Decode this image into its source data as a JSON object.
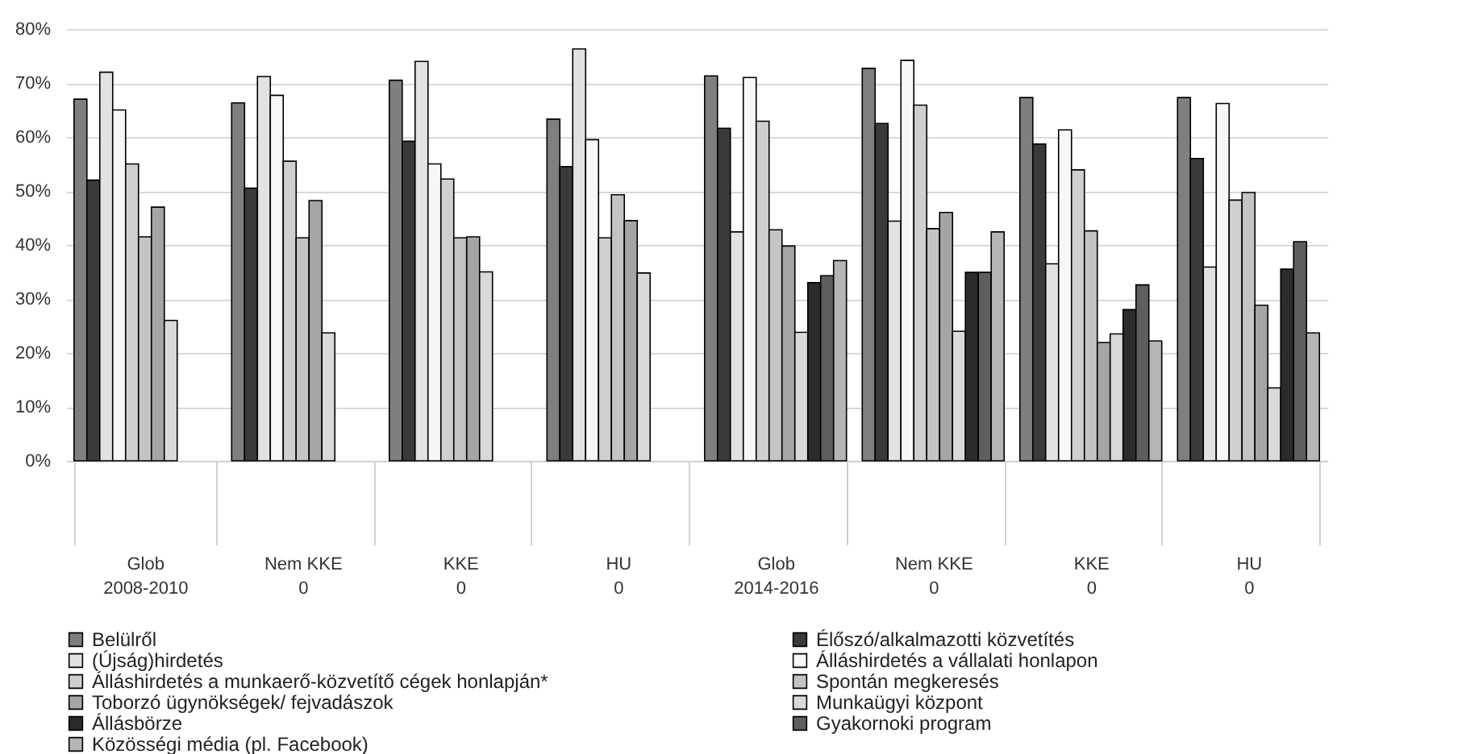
{
  "chart_data": {
    "type": "bar",
    "categories": [
      "Glob",
      "Nem KKE",
      "KKE",
      "HU",
      "Glob",
      "Nem KKE",
      "KKE",
      "HU"
    ],
    "annotations": [
      "2008-2010",
      "0",
      "0",
      "0",
      "2014-2016",
      "0",
      "0",
      "0"
    ],
    "ylim": [
      0,
      80
    ],
    "yticks": [
      {
        "value": 0,
        "label": "0%"
      },
      {
        "value": 10,
        "label": "10%"
      },
      {
        "value": 20,
        "label": "20%"
      },
      {
        "value": 30,
        "label": "30%"
      },
      {
        "value": 40,
        "label": "40%"
      },
      {
        "value": 50,
        "label": "50%"
      },
      {
        "value": 60,
        "label": "60%"
      },
      {
        "value": 70,
        "label": "70%"
      },
      {
        "value": 80,
        "label": "80%"
      }
    ],
    "grid": "y",
    "legend": "bottom",
    "series": [
      {
        "name": "Belülről",
        "color": "#7f7f7f",
        "values": [
          67,
          66.3,
          70.5,
          63.3,
          71.3,
          72.7,
          67.3,
          67.3
        ]
      },
      {
        "name": "Élőszó/alkalmazotti közvetítés",
        "color": "#3a3a3a",
        "values": [
          52,
          50.5,
          59.2,
          54.5,
          61.6,
          62.5,
          58.7,
          56
        ]
      },
      {
        "name": "(Újság)hirdetés",
        "color": "#e2e2e2",
        "values": [
          72,
          71.2,
          74,
          76.3,
          42.4,
          44.4,
          36.5,
          35.9
        ]
      },
      {
        "name": "Álláshirdetés a vállalati honlapon",
        "color": "#f7f7f7",
        "values": [
          65,
          67.7,
          55,
          59.5,
          71,
          74.2,
          61.3,
          66.2
        ]
      },
      {
        "name": "Álláshirdetés a munkaerő-közvetítő cégek honlapján*",
        "color": "#cfcfcf",
        "values": [
          55,
          55.5,
          52.2,
          41.3,
          62.9,
          65.9,
          53.9,
          48.3
        ]
      },
      {
        "name": "Spontán megkeresés",
        "color": "#c4c4c4",
        "values": [
          41.5,
          41.3,
          41.3,
          49.3,
          42.8,
          43,
          42.6,
          49.7
        ]
      },
      {
        "name": "Toborzó ügynökségek/ fejvadászok",
        "color": "#a5a5a5",
        "values": [
          47,
          48.2,
          41.5,
          44.5,
          39.8,
          46,
          21.9,
          28.8
        ]
      },
      {
        "name": "Munkaügyi központ",
        "color": "#d9d9d9",
        "values": [
          26,
          23.7,
          35,
          34.8,
          23.8,
          24,
          23.5,
          13.5
        ]
      },
      {
        "name": "Állásbörze",
        "color": "#2b2b2b",
        "values": [
          null,
          null,
          null,
          null,
          33,
          34.9,
          28,
          35.5
        ]
      },
      {
        "name": "Gyakornoki program",
        "color": "#5e5e5e",
        "values": [
          null,
          null,
          null,
          null,
          34.3,
          34.9,
          32.6,
          40.6
        ]
      },
      {
        "name": "Közösségi média (pl. Facebook)",
        "color": "#b5b5b5",
        "values": [
          null,
          null,
          null,
          null,
          37.1,
          42.4,
          22.2,
          23.7
        ]
      }
    ]
  }
}
